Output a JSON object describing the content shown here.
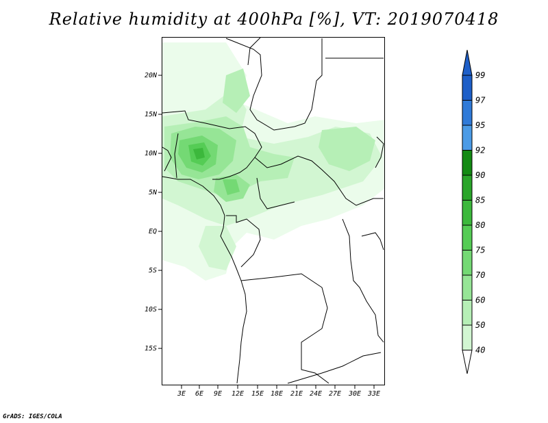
{
  "title": "Relative humidity at 400hPa [%], VT: 2019070418",
  "credit": "GrADS: IGES/COLA",
  "map": {
    "lat_labels": [
      "20N",
      "15N",
      "10N",
      "5N",
      "EQ",
      "5S",
      "10S",
      "15S"
    ],
    "lon_labels": [
      "3E",
      "6E",
      "9E",
      "12E",
      "15E",
      "18E",
      "21E",
      "24E",
      "27E",
      "30E",
      "33E"
    ],
    "extent": {
      "lon_min": 0,
      "lon_max": 34,
      "lat_min": -19.7,
      "lat_max": 24.4
    }
  },
  "colorbar": {
    "levels": [
      "99",
      "97",
      "95",
      "92",
      "90",
      "85",
      "80",
      "75",
      "70",
      "60",
      "50",
      "40"
    ],
    "colors": [
      "#1e5fc8",
      "#2f7ad8",
      "#4b9be6",
      "#138a13",
      "#2aa52a",
      "#3cb83c",
      "#55cc55",
      "#74d974",
      "#96e596",
      "#b6efb6",
      "#d2f6d2",
      "#ebfceb"
    ],
    "arrow_top_color": "#1e5fc8",
    "arrow_bottom_color": "#ffffff"
  },
  "colors": {
    "coast": "#000000",
    "background": "#ffffff"
  }
}
